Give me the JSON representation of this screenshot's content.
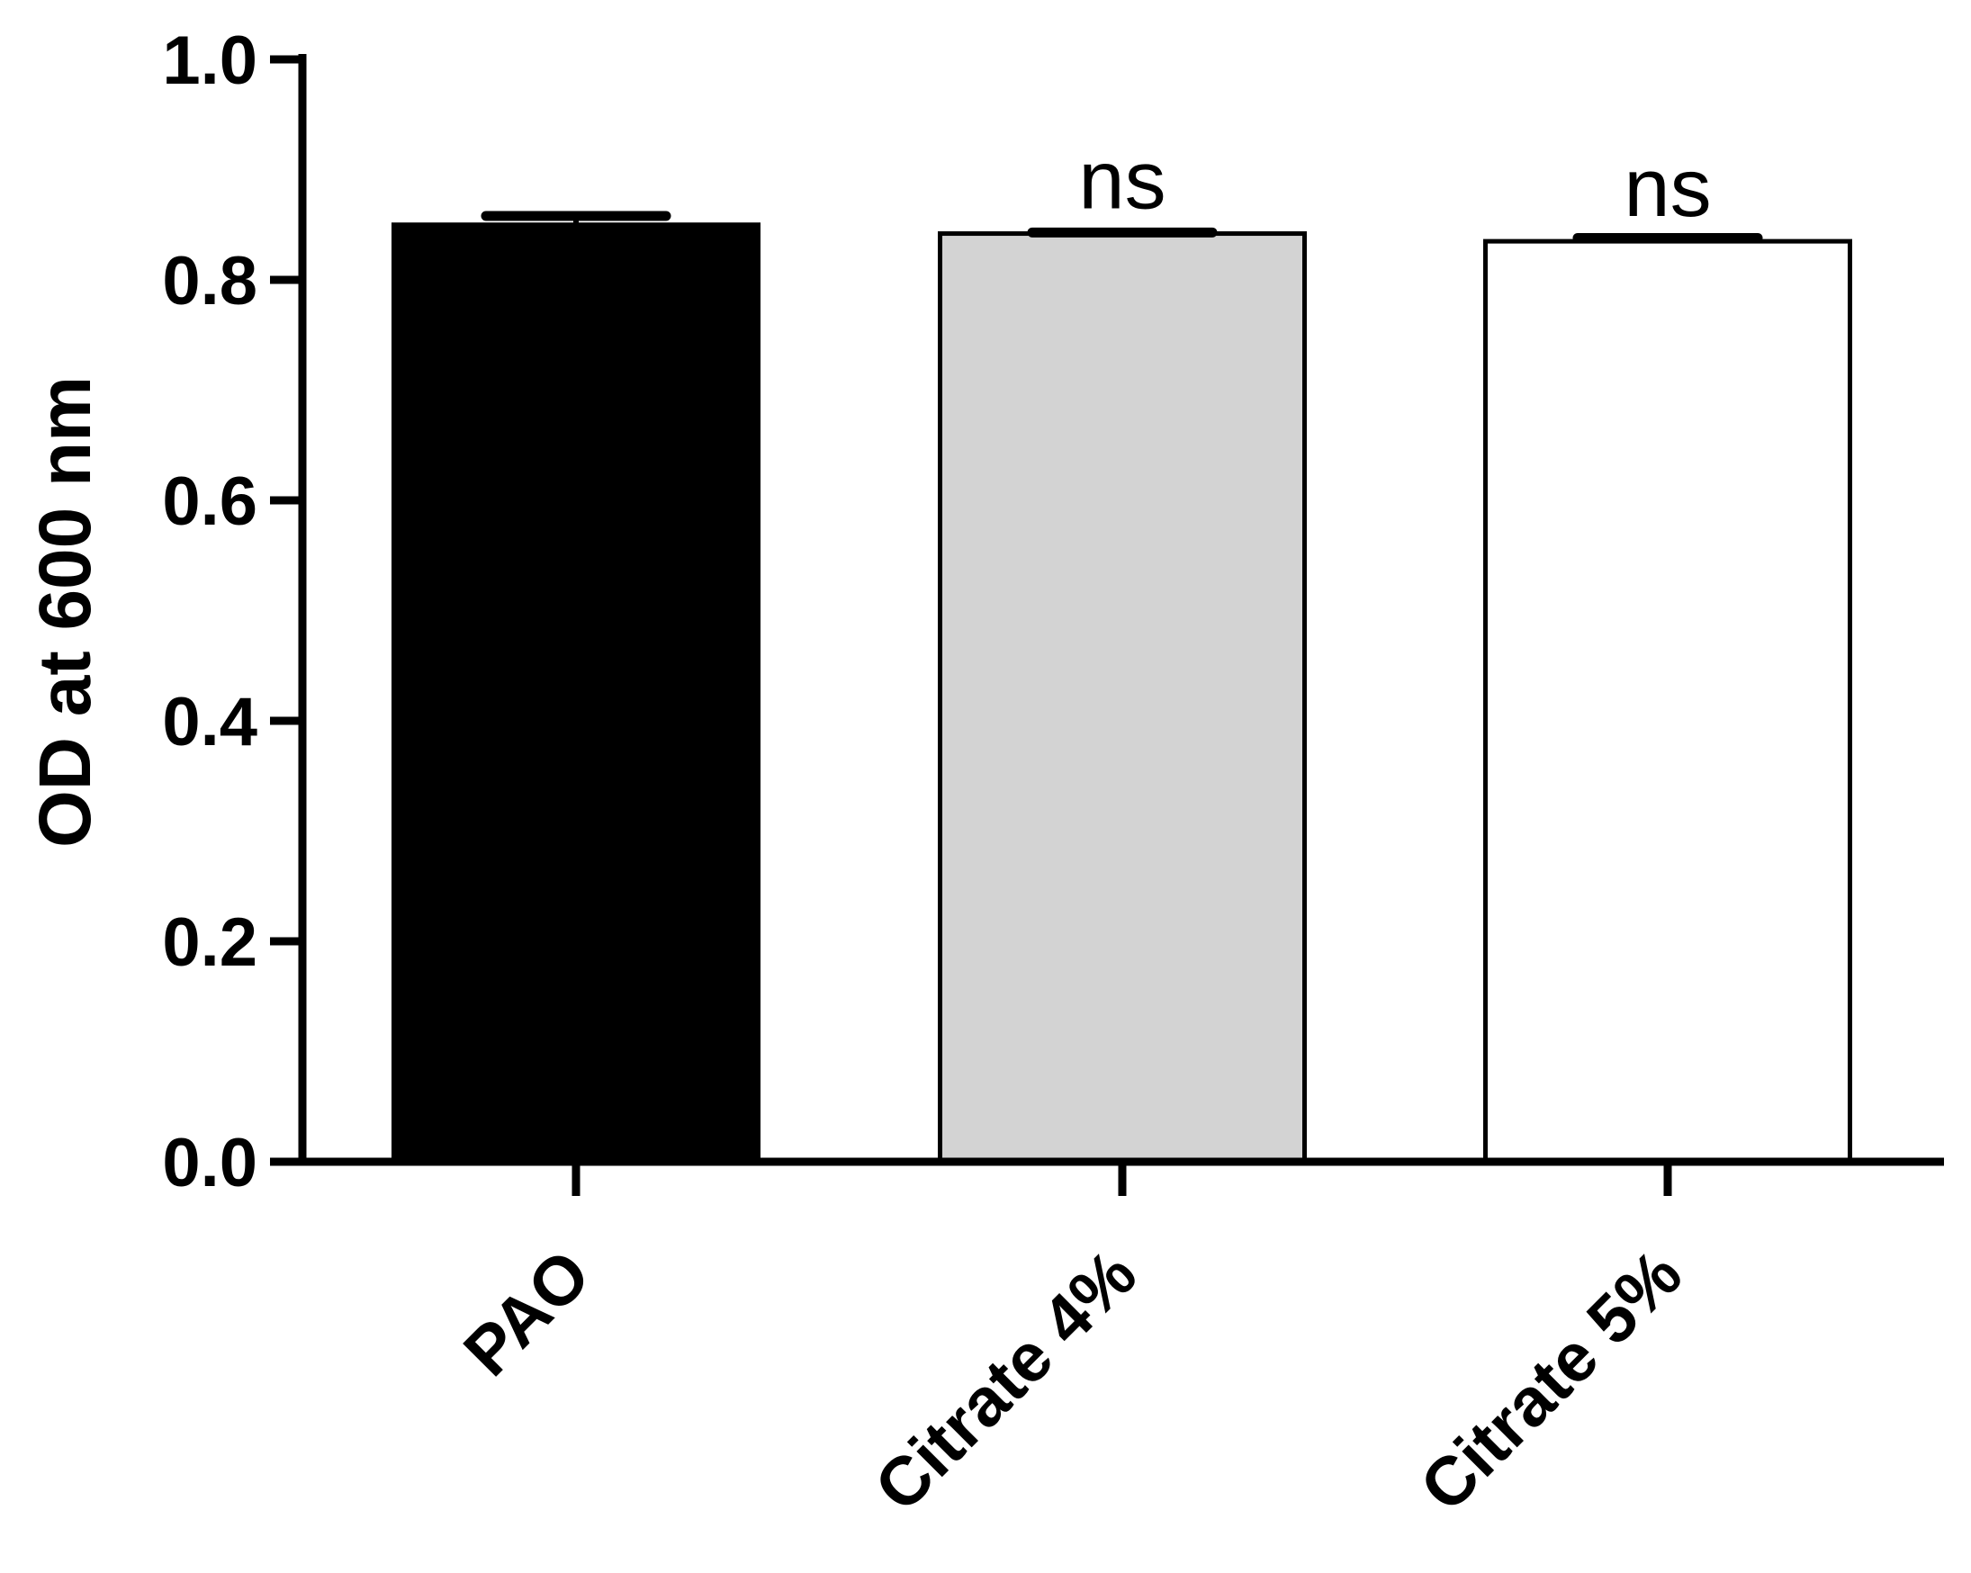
{
  "chart_data": {
    "type": "bar",
    "categories": [
      "PAO",
      "Citrate 4%",
      "Citrate 5%"
    ],
    "values": [
      0.85,
      0.842,
      0.835
    ],
    "errors": [
      0.008,
      0.001,
      0.003
    ],
    "annotations": [
      "",
      "ns",
      "ns"
    ],
    "bar_colors": [
      "#000000",
      "#d3d3d3",
      "#ffffff"
    ],
    "bar_edge_color": "#000000",
    "title": "",
    "xlabel": "",
    "ylabel": "OD at 600 nm",
    "ylim": [
      0.0,
      1.0
    ],
    "yticks": [
      0.0,
      0.2,
      0.4,
      0.6,
      0.8,
      1.0
    ],
    "ytick_labels": [
      "0.0",
      "0.2",
      "0.4",
      "0.6",
      "0.8",
      "1.0"
    ],
    "grid": false,
    "legend": "none"
  }
}
